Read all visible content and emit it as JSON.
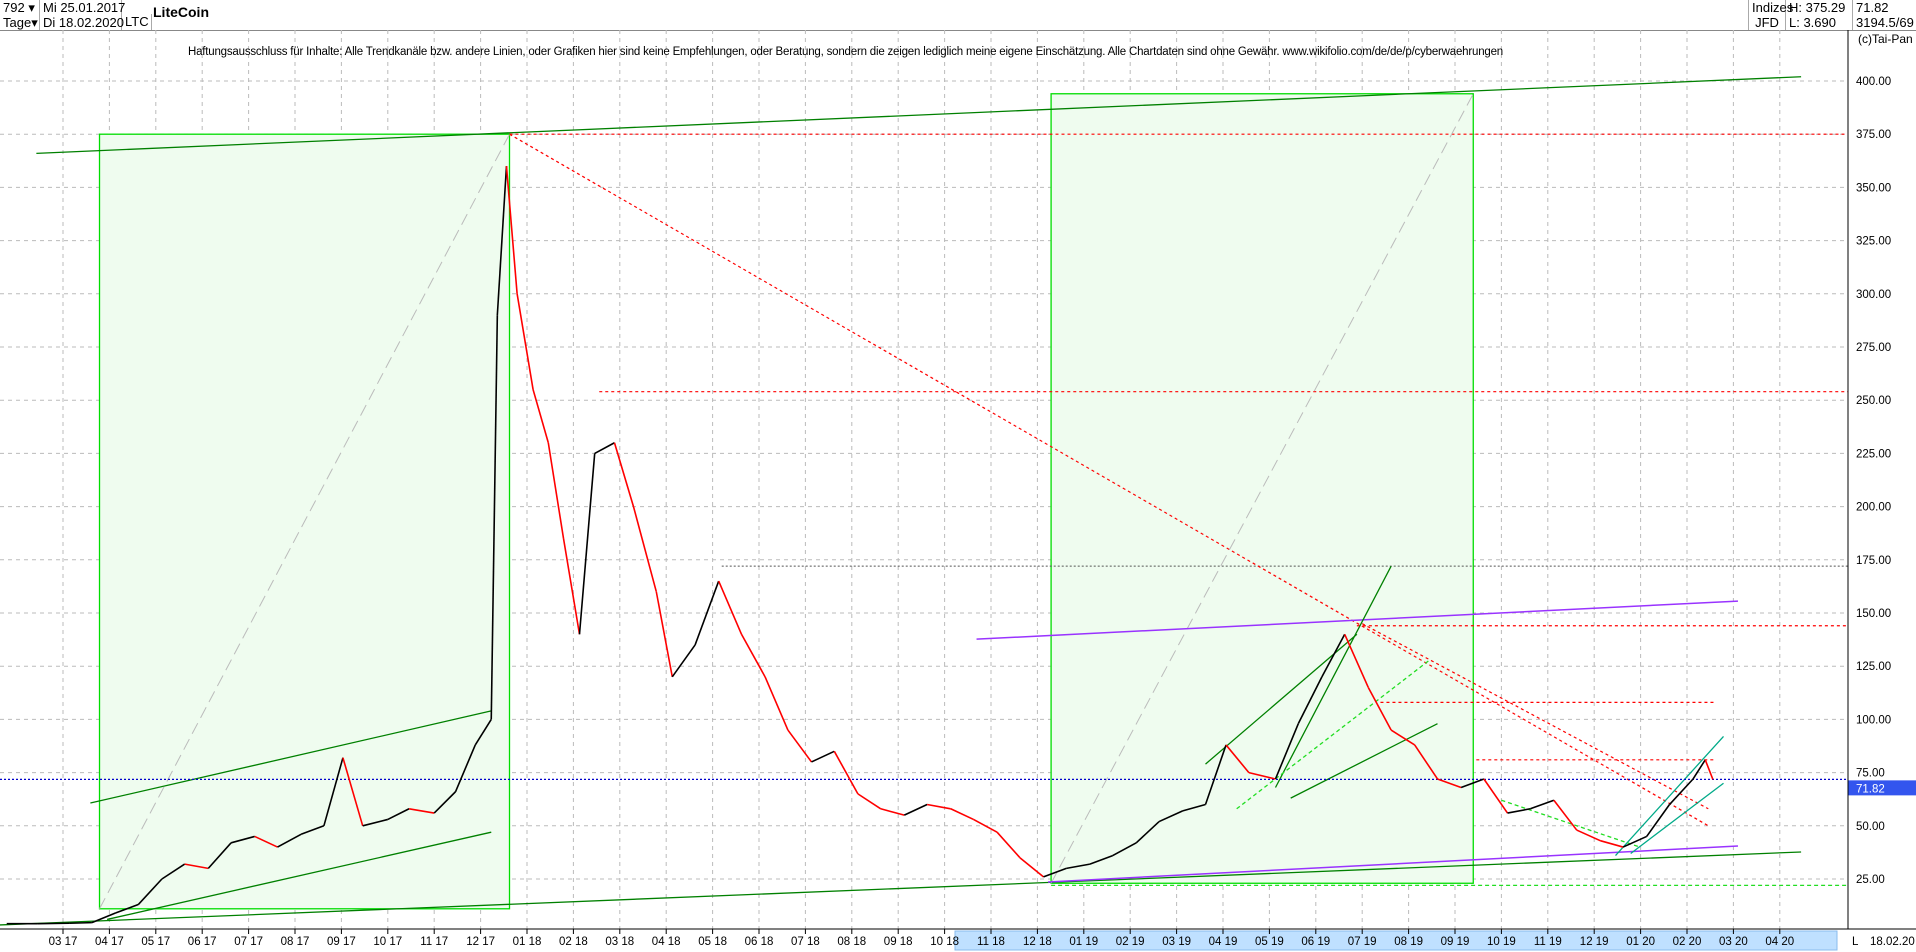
{
  "header": {
    "period_count": "792",
    "period_unit": "Tage",
    "start_date": "Mi 25.01.2017",
    "end_date": "Di 18.02.2020",
    "symbol": "LTC",
    "title": "LiteCoin",
    "market": "Indizes",
    "source": "JFD",
    "high": "H: 375.29",
    "low": "L: 3.690",
    "last": "71.82",
    "info": "3194.5/69",
    "copyright": "(c)Tai-Pan",
    "dropdown_icon": "caret-down-icon"
  },
  "disclaimer": "Haftungsausschluss für Inhalte: Alle Trendkanäle bzw. andere Linien, oder Grafiken hier sind keine Empfehlungen, oder Beratung, sondern die zeigen lediglich meine eigene Einschätzung. Alle Chartdaten sind ohne Gewähr.  www.wikifolio.com/de/de/p/cyberwaehrungen",
  "chart_data": {
    "type": "candlestick",
    "title": "LiteCoin",
    "ylim": [
      0,
      400
    ],
    "yticks": [
      25,
      50,
      75,
      100,
      125,
      150,
      175,
      200,
      225,
      250,
      275,
      300,
      325,
      350,
      375,
      400
    ],
    "ytick_labels": [
      "25.00",
      "50.00",
      "75.00",
      "100.00",
      "125.00",
      "150.00",
      "175.00",
      "200.00",
      "225.00",
      "250.00",
      "275.00",
      "300.00",
      "325.00",
      "350.00",
      "375.00",
      "400.00"
    ],
    "xtick_labels": [
      "03 17",
      "04 17",
      "05 17",
      "06 17",
      "07 17",
      "08 17",
      "09 17",
      "10 17",
      "11 17",
      "12 17",
      "01 18",
      "02 18",
      "03 18",
      "04 18",
      "05 18",
      "06 18",
      "07 18",
      "08 18",
      "09 18",
      "10 18",
      "11 18",
      "12 18",
      "01 19",
      "02 19",
      "03 19",
      "04 19",
      "05 19",
      "06 19",
      "07 19",
      "08 19",
      "09 19",
      "10 19",
      "11 19",
      "12 19",
      "01 20",
      "02 20",
      "03 20",
      "04 20"
    ],
    "axis_end_label": "L",
    "axis_end_date": "18.02.20",
    "grid": true,
    "current_price": 71.82,
    "current_price_label": "71.82",
    "colors": {
      "up": "#000000",
      "down": "#ff0000",
      "box": "#00dd00",
      "box_fill": "#effcef",
      "trend": "#008000",
      "purple": "#9933ff",
      "current": "#0000cc"
    },
    "price_series": [
      [
        "2017-01-25",
        4
      ],
      [
        "2017-02-15",
        4
      ],
      [
        "2017-03-05",
        4.2
      ],
      [
        "2017-03-20",
        4.5
      ],
      [
        "2017-04-05",
        9
      ],
      [
        "2017-04-20",
        13
      ],
      [
        "2017-05-05",
        25
      ],
      [
        "2017-05-20",
        32
      ],
      [
        "2017-06-05",
        30
      ],
      [
        "2017-06-20",
        42
      ],
      [
        "2017-07-05",
        45
      ],
      [
        "2017-07-20",
        40
      ],
      [
        "2017-08-05",
        46
      ],
      [
        "2017-08-20",
        50
      ],
      [
        "2017-09-02",
        82
      ],
      [
        "2017-09-15",
        50
      ],
      [
        "2017-10-01",
        53
      ],
      [
        "2017-10-15",
        58
      ],
      [
        "2017-11-01",
        56
      ],
      [
        "2017-11-15",
        66
      ],
      [
        "2017-11-28",
        88
      ],
      [
        "2017-12-08",
        100
      ],
      [
        "2017-12-12",
        290
      ],
      [
        "2017-12-18",
        360
      ],
      [
        "2017-12-25",
        300
      ],
      [
        "2018-01-05",
        255
      ],
      [
        "2018-01-15",
        230
      ],
      [
        "2018-01-25",
        185
      ],
      [
        "2018-02-05",
        140
      ],
      [
        "2018-02-15",
        225
      ],
      [
        "2018-02-28",
        230
      ],
      [
        "2018-03-10",
        200
      ],
      [
        "2018-03-25",
        160
      ],
      [
        "2018-04-05",
        120
      ],
      [
        "2018-04-20",
        135
      ],
      [
        "2018-05-05",
        165
      ],
      [
        "2018-05-20",
        140
      ],
      [
        "2018-06-05",
        120
      ],
      [
        "2018-06-20",
        95
      ],
      [
        "2018-07-05",
        80
      ],
      [
        "2018-07-20",
        85
      ],
      [
        "2018-08-05",
        65
      ],
      [
        "2018-08-20",
        58
      ],
      [
        "2018-09-05",
        55
      ],
      [
        "2018-09-20",
        60
      ],
      [
        "2018-10-05",
        58
      ],
      [
        "2018-10-20",
        53
      ],
      [
        "2018-11-05",
        47
      ],
      [
        "2018-11-20",
        35
      ],
      [
        "2018-12-05",
        26
      ],
      [
        "2018-12-20",
        30
      ],
      [
        "2019-01-05",
        32
      ],
      [
        "2019-01-20",
        36
      ],
      [
        "2019-02-05",
        42
      ],
      [
        "2019-02-20",
        52
      ],
      [
        "2019-03-05",
        57
      ],
      [
        "2019-03-20",
        60
      ],
      [
        "2019-04-03",
        88
      ],
      [
        "2019-04-18",
        75
      ],
      [
        "2019-05-05",
        72
      ],
      [
        "2019-05-20",
        98
      ],
      [
        "2019-06-05",
        120
      ],
      [
        "2019-06-20",
        140
      ],
      [
        "2019-07-05",
        115
      ],
      [
        "2019-07-20",
        95
      ],
      [
        "2019-08-05",
        88
      ],
      [
        "2019-08-20",
        72
      ],
      [
        "2019-09-05",
        68
      ],
      [
        "2019-09-20",
        72
      ],
      [
        "2019-10-05",
        56
      ],
      [
        "2019-10-20",
        58
      ],
      [
        "2019-11-05",
        62
      ],
      [
        "2019-11-20",
        48
      ],
      [
        "2019-12-05",
        43
      ],
      [
        "2019-12-20",
        40
      ],
      [
        "2020-01-05",
        45
      ],
      [
        "2020-01-20",
        60
      ],
      [
        "2020-02-05",
        72
      ],
      [
        "2020-02-13",
        81
      ],
      [
        "2020-02-18",
        71.82
      ]
    ],
    "annotations": {
      "boxes": [
        {
          "from": [
            "2017-03-25",
            375
          ],
          "to": [
            "2017-12-20",
            11
          ]
        },
        {
          "from": [
            "2018-12-10",
            394
          ],
          "to": [
            "2019-09-13",
            23
          ]
        }
      ],
      "hlines": [
        {
          "price": 375,
          "from": "2017-12-20",
          "to": "end",
          "style": "red-dotted"
        },
        {
          "price": 254,
          "from": "2018-02-18",
          "to": "end",
          "style": "red-dotted"
        },
        {
          "price": 172,
          "from": "2018-05-07",
          "to": "end",
          "style": "black-dotted"
        },
        {
          "price": 144,
          "from": "2019-06-28",
          "to": "end",
          "style": "red-dotted"
        },
        {
          "price": 108,
          "from": "2019-07-13",
          "to": "2020-02-20",
          "style": "red-dotted"
        },
        {
          "price": 81,
          "from": "2019-09-15",
          "to": "2020-02-20",
          "style": "red-dotted"
        },
        {
          "price": 22,
          "from": "2018-12-10",
          "to": "end",
          "style": "green-dotted"
        }
      ],
      "lines": [
        {
          "from": [
            "2017-02-14",
            366
          ],
          "to": [
            "2020-04-15",
            402
          ],
          "style": "trend"
        },
        {
          "from": [
            "2017-01-20",
            3.4
          ],
          "to": [
            "2020-04-15",
            37.7
          ],
          "style": "trend"
        },
        {
          "from": [
            "2017-03-19",
            60.7
          ],
          "to": [
            "2017-12-08",
            104
          ],
          "style": "trend"
        },
        {
          "from": [
            "2017-03-30",
            6
          ],
          "to": [
            "2017-12-08",
            47
          ],
          "style": "trend"
        },
        {
          "from": [
            "2017-12-20",
            375
          ],
          "to": [
            "2020-02-15",
            50
          ],
          "style": "red-dotted"
        },
        {
          "from": [
            "2017-03-25",
            11
          ],
          "to": [
            "2017-12-20",
            375
          ],
          "style": "gray-dashed"
        },
        {
          "from": [
            "2018-12-10",
            23
          ],
          "to": [
            "2019-09-13",
            394
          ],
          "style": "gray-dashed"
        },
        {
          "from": [
            "2018-10-22",
            137.7
          ],
          "to": [
            "2020-03-04",
            155.6
          ],
          "style": "purple"
        },
        {
          "from": [
            "2018-12-08",
            23.6
          ],
          "to": [
            "2020-03-04",
            40.5
          ],
          "style": "purple"
        },
        {
          "from": [
            "2019-03-20",
            79
          ],
          "to": [
            "2019-06-28",
            140
          ],
          "style": "trend"
        },
        {
          "from": [
            "2019-05-15",
            63
          ],
          "to": [
            "2019-08-20",
            98
          ],
          "style": "trend"
        },
        {
          "from": [
            "2019-05-05",
            68
          ],
          "to": [
            "2019-07-20",
            172
          ],
          "style": "trend"
        },
        {
          "from": [
            "2019-04-10",
            58
          ],
          "to": [
            "2019-08-15",
            128
          ],
          "style": "green-dotted"
        },
        {
          "from": [
            "2019-07-01",
            145
          ],
          "to": [
            "2020-02-15",
            58
          ],
          "style": "red-dotted"
        },
        {
          "from": [
            "2019-12-15",
            36
          ],
          "to": [
            "2020-02-25",
            92
          ],
          "style": "teal"
        },
        {
          "from": [
            "2019-12-25",
            37
          ],
          "to": [
            "2020-02-25",
            70
          ],
          "style": "teal"
        },
        {
          "from": [
            "2019-10-01",
            62
          ],
          "to": [
            "2019-12-31",
            40
          ],
          "style": "green-dotted"
        }
      ]
    }
  }
}
